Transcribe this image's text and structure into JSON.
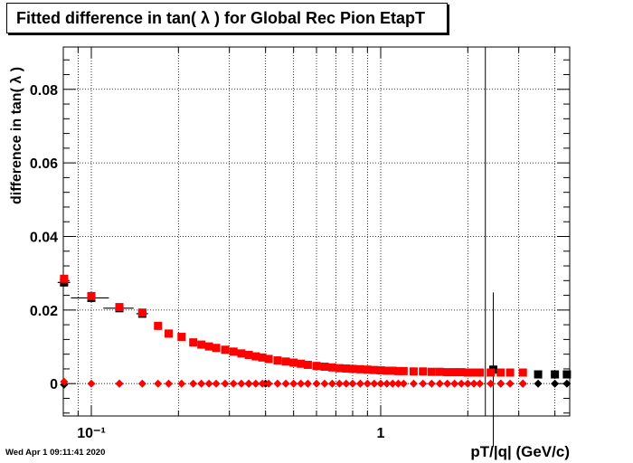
{
  "title": "Fitted difference in tan( λ ) for Global Rec Pion EtapT",
  "footer": {
    "timestamp": "Wed Apr  1 09:11:41 2020"
  },
  "colors": {
    "series_red": "#ff0000",
    "series_black": "#000000",
    "grid": "#000000",
    "background": "#ffffff"
  },
  "chart_data": {
    "type": "scatter",
    "title": "Fitted difference in tan( λ ) for Global Rec Pion EtapT",
    "xlabel": "pT/|q| (GeV/c)",
    "ylabel": "difference in tan( λ )",
    "x_scale": "log",
    "xlim": [
      0.08,
      4.5
    ],
    "ylim": [
      -0.0088,
      0.0915
    ],
    "x_ticks": [
      {
        "value": 0.1,
        "label": "10⁻¹"
      },
      {
        "value": 1,
        "label": "1"
      }
    ],
    "y_ticks": [
      0,
      0.02,
      0.04,
      0.06,
      0.08
    ],
    "y_tick_labels": [
      "0",
      "0.02",
      "0.04",
      "0.06",
      "0.08"
    ],
    "grid": true,
    "series": [
      {
        "marker": "square",
        "color": "#000000",
        "x": [
          0.0805,
          0.1,
          0.125,
          0.15,
          2.45,
          3.5,
          4.0,
          4.4
        ],
        "y": [
          0.0275,
          0.0233,
          0.0205,
          0.019,
          0.0038,
          0.0025,
          0.0025,
          0.0025
        ],
        "xerr": [
          0.004,
          0.015,
          0.015,
          0.007,
          0,
          0,
          0,
          0
        ],
        "yerr": [
          0.001,
          0,
          0,
          0,
          0.021,
          0,
          0,
          0
        ]
      },
      {
        "marker": "square",
        "color": "#ff0000",
        "x": [
          0.0805,
          0.1,
          0.125,
          0.15,
          0.17,
          0.185,
          0.205,
          0.225,
          0.24,
          0.255,
          0.27,
          0.29,
          0.31,
          0.33,
          0.35,
          0.37,
          0.39,
          0.41,
          0.44,
          0.47,
          0.5,
          0.53,
          0.56,
          0.6,
          0.64,
          0.68,
          0.72,
          0.76,
          0.8,
          0.85,
          0.9,
          0.95,
          1.0,
          1.05,
          1.1,
          1.15,
          1.2,
          1.3,
          1.4,
          1.5,
          1.6,
          1.7,
          1.8,
          1.9,
          2.0,
          2.1,
          2.2,
          2.4,
          2.6,
          2.8,
          3.1
        ],
        "y": [
          0.0285,
          0.0238,
          0.0208,
          0.0193,
          0.0157,
          0.0136,
          0.0127,
          0.0112,
          0.0106,
          0.0101,
          0.0097,
          0.0092,
          0.0087,
          0.0082,
          0.0078,
          0.0074,
          0.0071,
          0.0067,
          0.0063,
          0.006,
          0.0057,
          0.0054,
          0.0051,
          0.0048,
          0.0046,
          0.0044,
          0.0042,
          0.0041,
          0.004,
          0.0039,
          0.0038,
          0.0037,
          0.0036,
          0.0035,
          0.0035,
          0.0034,
          0.0034,
          0.0033,
          0.0033,
          0.0032,
          0.0032,
          0.0031,
          0.0031,
          0.0031,
          0.003,
          0.003,
          0.003,
          0.003,
          0.003,
          0.003,
          0.003
        ]
      },
      {
        "marker": "diamond",
        "color": "#000000",
        "x": [
          0.0805,
          0.125,
          0.35,
          0.4,
          2.6,
          3.1,
          3.5,
          4.0,
          4.4
        ],
        "y": [
          -0.0003,
          0,
          0,
          0,
          0,
          0,
          0,
          0,
          0
        ]
      },
      {
        "marker": "diamond",
        "color": "#ff0000",
        "x": [
          0.0805,
          0.1,
          0.125,
          0.15,
          0.17,
          0.185,
          0.205,
          0.225,
          0.24,
          0.255,
          0.27,
          0.29,
          0.31,
          0.33,
          0.35,
          0.37,
          0.39,
          0.41,
          0.44,
          0.47,
          0.5,
          0.53,
          0.56,
          0.6,
          0.64,
          0.68,
          0.72,
          0.76,
          0.8,
          0.85,
          0.9,
          0.95,
          1.0,
          1.05,
          1.1,
          1.15,
          1.2,
          1.3,
          1.4,
          1.5,
          1.6,
          1.7,
          1.8,
          1.9,
          2.0,
          2.1,
          2.2,
          2.4,
          2.6,
          2.8,
          3.1
        ],
        "y": [
          0.0005,
          0,
          0,
          0,
          0,
          0,
          0,
          0,
          0,
          0,
          0,
          0,
          0,
          0,
          0,
          0,
          0,
          0,
          0,
          0,
          0,
          0,
          0,
          0,
          0,
          0,
          0,
          0,
          0,
          0,
          0,
          0,
          0,
          0,
          0,
          0,
          0,
          0,
          0,
          0,
          0,
          0,
          0,
          0,
          0,
          0,
          0,
          0,
          0,
          0,
          0
        ]
      }
    ]
  }
}
